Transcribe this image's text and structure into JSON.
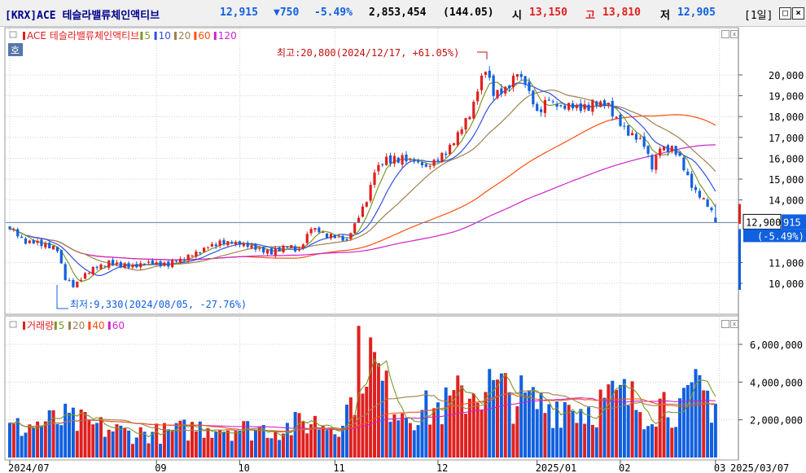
{
  "header": {
    "symbol": "[KRX]ACE 테슬라밸류체인액티브",
    "price": "12,915",
    "change": "▼750",
    "change_pct": "-5.49%",
    "volume": "2,853,454",
    "amount": "(144.05)",
    "open_label": "시",
    "open_value": "13,150",
    "high_label": "고",
    "high_value": "13,810",
    "low_label": "저",
    "low_value": "12,905",
    "period": "[1일]",
    "colors": {
      "up": "#e02020",
      "down": "#1060e0",
      "brand": "#00008b"
    }
  },
  "price_panel": {
    "badge": "호",
    "legend": [
      {
        "label": "ACE 테슬라밸류체인액티브",
        "color": "#e02020"
      },
      {
        "label": "5",
        "color": "#7a9a2a"
      },
      {
        "label": "10",
        "color": "#3050e0"
      },
      {
        "label": "20",
        "color": "#a08050"
      },
      {
        "label": "60",
        "color": "#ff5010"
      },
      {
        "label": "120",
        "color": "#cc22cc"
      }
    ],
    "high_annotation": "최고:20,800(2024/12/17, +61.05%)",
    "low_annotation": "최저:9,330(2024/08/05, -27.76%)",
    "last_price_tag": "12,900",
    "current_tag": "915",
    "current_pct_tag": "(-5.49%)",
    "y_ticks": [
      "20,000",
      "19,000",
      "18,000",
      "17,000",
      "16,000",
      "15,000",
      "14,000",
      "11,000",
      "10,000"
    ]
  },
  "volume_panel": {
    "legend": [
      {
        "label": "거래량",
        "color": "#e02020"
      },
      {
        "label": "5",
        "color": "#7a9a2a"
      },
      {
        "label": "20",
        "color": "#a08050"
      },
      {
        "label": "40",
        "color": "#ff5010"
      },
      {
        "label": "60",
        "color": "#cc22cc"
      }
    ],
    "y_ticks": [
      "6,000,000",
      "4,000,000",
      "2,000,000"
    ]
  },
  "x_axis": {
    "labels": [
      "2024/07",
      "09",
      "10",
      "11",
      "12",
      "2025/01",
      "02",
      "03"
    ],
    "end_date": "2025/03/07"
  },
  "chart_data": {
    "type": "candlestick",
    "price_ylim": [
      9000,
      21000
    ],
    "volume_ylim": [
      0,
      7000000
    ],
    "max": {
      "value": 20800,
      "date": "2024/12/17",
      "pct": 61.05
    },
    "min": {
      "value": 9330,
      "date": "2024/08/05",
      "pct": -27.76
    },
    "last": {
      "open": 13150,
      "high": 13810,
      "low": 12905,
      "close": 12915,
      "volume": 2853454
    },
    "anchors_close": [
      [
        0,
        12600
      ],
      [
        4,
        12000
      ],
      [
        8,
        11900
      ],
      [
        12,
        11650
      ],
      [
        14,
        10200
      ],
      [
        16,
        9900
      ],
      [
        20,
        10600
      ],
      [
        25,
        11000
      ],
      [
        30,
        10800
      ],
      [
        35,
        11000
      ],
      [
        40,
        10900
      ],
      [
        45,
        11300
      ],
      [
        50,
        11800
      ],
      [
        55,
        12000
      ],
      [
        58,
        11900
      ],
      [
        62,
        11700
      ],
      [
        66,
        11500
      ],
      [
        70,
        11800
      ],
      [
        73,
        11600
      ],
      [
        76,
        12700
      ],
      [
        80,
        12300
      ],
      [
        85,
        12000
      ],
      [
        88,
        13300
      ],
      [
        90,
        14000
      ],
      [
        92,
        15400
      ],
      [
        95,
        15900
      ],
      [
        100,
        16000
      ],
      [
        105,
        15600
      ],
      [
        110,
        16300
      ],
      [
        113,
        17200
      ],
      [
        116,
        18000
      ],
      [
        118,
        19200
      ],
      [
        120,
        20300
      ],
      [
        122,
        19000
      ],
      [
        125,
        19200
      ],
      [
        128,
        20100
      ],
      [
        130,
        19600
      ],
      [
        133,
        18100
      ],
      [
        136,
        18900
      ],
      [
        139,
        18300
      ],
      [
        142,
        18600
      ],
      [
        145,
        18400
      ],
      [
        148,
        18700
      ],
      [
        151,
        18500
      ],
      [
        154,
        17600
      ],
      [
        157,
        17100
      ],
      [
        160,
        16700
      ],
      [
        162,
        15600
      ],
      [
        164,
        16500
      ],
      [
        166,
        16500
      ],
      [
        168,
        16300
      ],
      [
        170,
        15600
      ],
      [
        172,
        14700
      ],
      [
        174,
        14200
      ],
      [
        176,
        13800
      ],
      [
        178,
        12915
      ]
    ],
    "anchors_volume": [
      [
        0,
        1500000
      ],
      [
        8,
        1800000
      ],
      [
        14,
        2000000
      ],
      [
        20,
        1700000
      ],
      [
        30,
        1300000
      ],
      [
        40,
        1300000
      ],
      [
        50,
        1700000
      ],
      [
        60,
        1500000
      ],
      [
        70,
        1600000
      ],
      [
        76,
        1900000
      ],
      [
        82,
        1700000
      ],
      [
        86,
        2800000
      ],
      [
        88,
        5000000
      ],
      [
        90,
        5800000
      ],
      [
        92,
        4800000
      ],
      [
        95,
        3300000
      ],
      [
        100,
        2500000
      ],
      [
        105,
        2500000
      ],
      [
        110,
        2700000
      ],
      [
        115,
        3400000
      ],
      [
        120,
        3800000
      ],
      [
        125,
        3400000
      ],
      [
        130,
        3000000
      ],
      [
        135,
        2700000
      ],
      [
        140,
        2900000
      ],
      [
        145,
        2500000
      ],
      [
        150,
        3000000
      ],
      [
        155,
        3200000
      ],
      [
        160,
        2600000
      ],
      [
        165,
        3000000
      ],
      [
        170,
        2600000
      ],
      [
        174,
        3600000
      ],
      [
        176,
        3200000
      ],
      [
        178,
        2853454
      ]
    ]
  }
}
